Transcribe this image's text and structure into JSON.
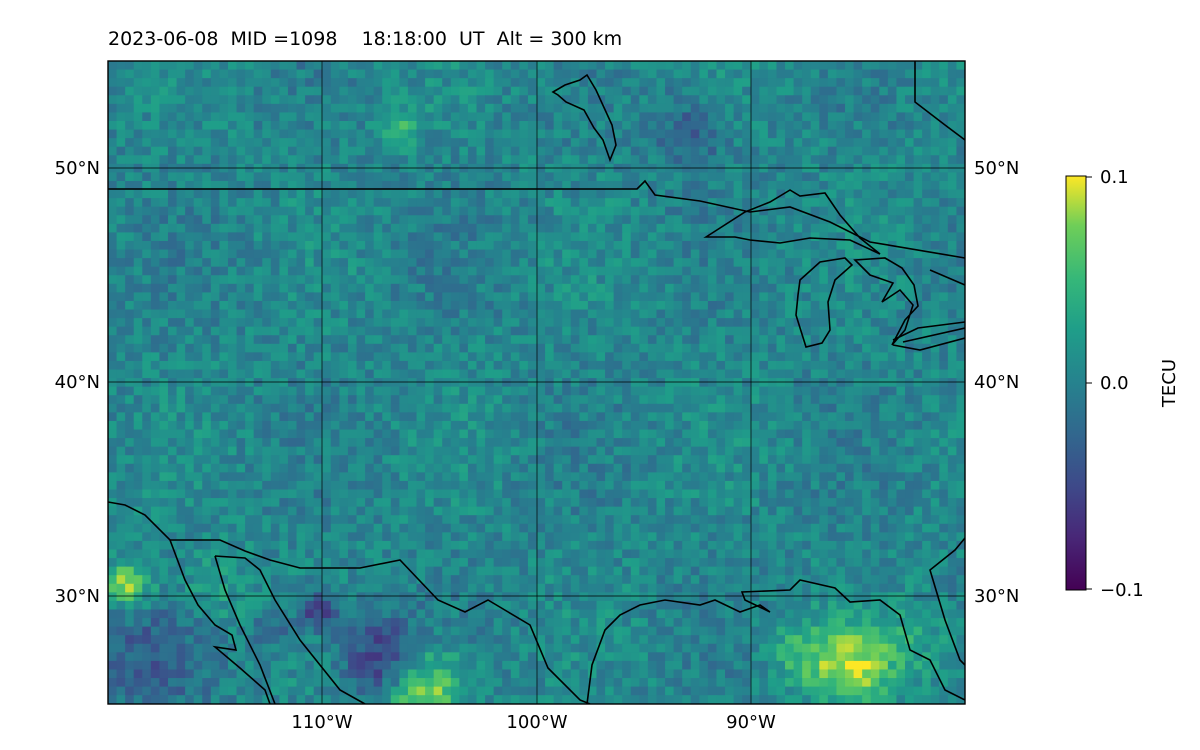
{
  "title": "2023-06-08  MID =1098    18:18:00  UT  Alt = 300 km",
  "map": {
    "projection": "equirectangular",
    "lon_range": [
      -120,
      -80
    ],
    "lat_range": [
      25,
      55
    ],
    "gridlines": {
      "lon": [
        -110,
        -100,
        -90
      ],
      "lat": [
        30,
        40,
        50
      ]
    },
    "lon_tick_labels": [
      "110°W",
      "100°W",
      "90°W"
    ],
    "lat_tick_labels": [
      "30°N",
      "40°N",
      "50°N"
    ],
    "field": "TEC residual (dTEC)",
    "colormap": "viridis",
    "background_value_mean": 0.0,
    "features": [
      {
        "name": "US-Canada border",
        "note": "49°N line"
      },
      {
        "name": "US-Mexico border"
      },
      {
        "name": "Gulf of Mexico coastline"
      },
      {
        "name": "Great Lakes shorelines"
      },
      {
        "name": "Lake Winnipeg"
      }
    ]
  },
  "colorbar": {
    "label": "TECU",
    "min": -0.1,
    "max": 0.1,
    "tick_labels": [
      "−0.1",
      "0.0",
      "0.1"
    ],
    "colormap": "viridis"
  },
  "colors": {
    "axis": "#000000",
    "grid": "#000000"
  }
}
